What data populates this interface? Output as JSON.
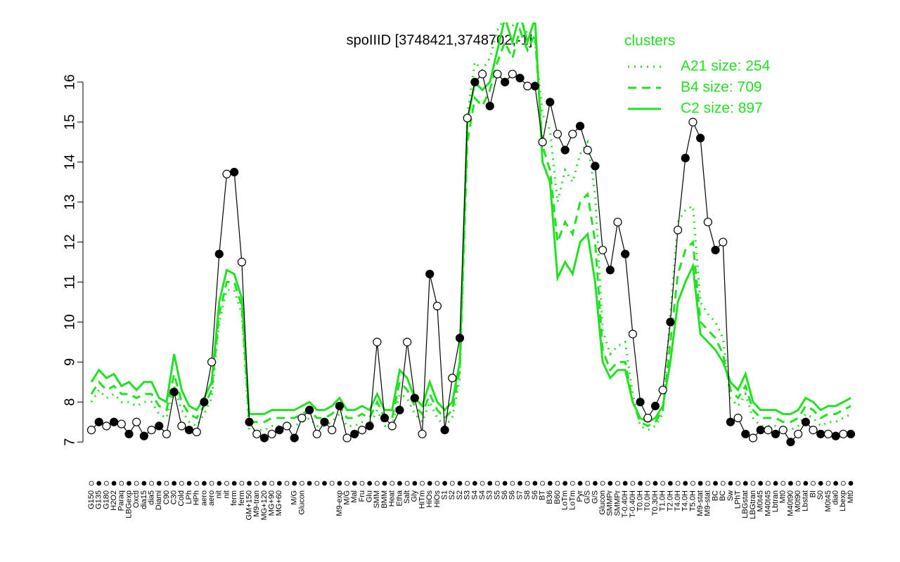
{
  "chart_data": {
    "type": "line",
    "title": "spoIIID [3748421,3748702,-1]",
    "legend_title": "clusters",
    "legend_position": "top-right",
    "categories": [
      "G150",
      "G135",
      "G180",
      "H2O2",
      "Paraq",
      "LBGexp",
      "Oxctl",
      "dia15",
      "dia5",
      "Diami",
      "C90",
      "C30",
      "Cold",
      "LPh",
      "HPh",
      "aero",
      "aero",
      "nit",
      "nit",
      "ferm",
      "ferm",
      "GM+150",
      "M9-tran",
      "MG+120",
      "MG+90",
      "MG+60",
      null,
      "M/G",
      "Glucon",
      null,
      null,
      null,
      null,
      "M9-exp",
      "M/G",
      "Mal",
      "Fru",
      "Glu",
      "SMM",
      "BMM",
      "Heat",
      "Etha",
      "Salt",
      "Gly",
      "HiTm",
      "HiOs",
      "HiOs",
      "S1",
      "S2",
      "S2",
      "S3",
      "S4",
      "S4",
      "S3",
      "S5",
      "S6",
      "S6",
      "S7",
      "S8",
      "S6",
      "BT",
      "B36",
      "B60",
      "LoTm",
      "LoTm",
      "Pyr",
      "G/S",
      "G/S",
      "Glucon",
      "SMMPr",
      "SMMPr",
      "T-0.40H",
      "T-0.40H",
      "T0.0H",
      "T0.0H",
      "T0.30H",
      "T1.0H",
      "T2.0H",
      "T4.0H",
      "T4.0H",
      "T5.0H",
      "M9-stat",
      "M9-stat",
      "BC",
      "BC",
      "Sw",
      "LPhT",
      "LBGstat",
      "LBGtran",
      "M0t45",
      "M40t45",
      "Lbtran",
      "Mt0",
      "M40t90",
      "M0t90",
      "Lbstat",
      "BI",
      "S0",
      "M0t45",
      "dia0",
      "Lbexp",
      "Mt0"
    ],
    "values": [
      7.3,
      7.5,
      7.4,
      7.5,
      7.45,
      7.2,
      7.5,
      7.15,
      7.3,
      7.4,
      7.2,
      8.25,
      7.4,
      7.3,
      7.25,
      8.0,
      9.0,
      11.7,
      13.7,
      13.75,
      11.5,
      7.5,
      7.2,
      7.1,
      7.2,
      7.3,
      7.4,
      7.1,
      7.6,
      7.8,
      7.2,
      7.5,
      7.3,
      7.9,
      7.1,
      7.2,
      7.3,
      7.4,
      9.5,
      7.6,
      7.4,
      7.8,
      9.5,
      8.1,
      7.2,
      11.2,
      10.4,
      7.3,
      8.6,
      9.6,
      15.1,
      16.0,
      16.2,
      15.4,
      16.2,
      16.0,
      16.2,
      16.1,
      15.9,
      15.9,
      14.5,
      15.5,
      14.7,
      14.3,
      14.7,
      14.9,
      14.3,
      13.9,
      11.8,
      11.3,
      12.5,
      11.7,
      9.7,
      8.0,
      7.6,
      7.9,
      8.3,
      10.0,
      12.3,
      14.1,
      15.0,
      14.6,
      12.5,
      11.8,
      12.0,
      7.5,
      7.6,
      7.2,
      7.1,
      7.3,
      7.3,
      7.2,
      7.3,
      7.0,
      7.2,
      7.5,
      7.3,
      7.2,
      7.2,
      7.15,
      7.2,
      7.2
    ],
    "color": "#000000",
    "series": [
      {
        "name": "A21 size: 254",
        "color": "#22e022",
        "style": "dotted",
        "values": [
          8.0,
          8.3,
          8.1,
          8.2,
          8.0,
          8.0,
          7.9,
          8.0,
          8.0,
          7.7,
          7.6,
          8.4,
          7.8,
          7.5,
          7.4,
          7.7,
          8.1,
          10.0,
          10.8,
          10.8,
          10.2,
          7.3,
          7.3,
          7.3,
          7.4,
          7.4,
          7.4,
          7.4,
          7.5,
          7.6,
          7.4,
          7.4,
          7.5,
          7.7,
          7.4,
          7.4,
          7.5,
          7.4,
          7.8,
          7.4,
          7.4,
          8.2,
          8.1,
          7.7,
          7.5,
          8.0,
          7.6,
          7.4,
          7.6,
          8.6,
          15.2,
          16.5,
          16.3,
          16.6,
          17.3,
          17.6,
          17.4,
          17.6,
          17.2,
          17.0,
          15.2,
          14.8,
          13.0,
          13.8,
          13.5,
          14.2,
          14.5,
          13.2,
          9.8,
          9.2,
          9.4,
          9.5,
          8.2,
          7.4,
          7.3,
          7.4,
          7.7,
          10.2,
          12.5,
          12.8,
          12.9,
          10.5,
          10.2,
          10.0,
          9.6,
          8.1,
          7.9,
          8.2,
          7.6,
          7.4,
          7.4,
          7.4,
          7.3,
          7.3,
          7.4,
          7.7,
          7.6,
          7.4,
          7.5,
          7.5,
          7.6,
          7.7
        ]
      },
      {
        "name": "B4 size: 709",
        "color": "#22e022",
        "style": "dashed",
        "values": [
          8.2,
          8.5,
          8.3,
          8.4,
          8.2,
          8.2,
          8.1,
          8.2,
          8.2,
          7.9,
          7.8,
          8.7,
          8.0,
          7.7,
          7.6,
          7.9,
          8.3,
          10.2,
          11.0,
          11.0,
          10.4,
          7.5,
          7.5,
          7.5,
          7.6,
          7.6,
          7.6,
          7.6,
          7.7,
          7.8,
          7.6,
          7.6,
          7.7,
          7.9,
          7.6,
          7.6,
          7.7,
          7.6,
          8.0,
          7.6,
          7.6,
          8.5,
          8.3,
          7.9,
          7.7,
          8.2,
          7.8,
          7.6,
          7.8,
          8.8,
          14.5,
          15.6,
          15.4,
          15.8,
          16.5,
          17.0,
          16.6,
          17.3,
          16.8,
          17.2,
          14.4,
          13.8,
          12.0,
          12.5,
          12.2,
          13.0,
          13.2,
          12.0,
          9.3,
          8.8,
          9.0,
          9.0,
          8.0,
          7.5,
          7.4,
          7.5,
          7.8,
          9.5,
          11.2,
          11.8,
          12.0,
          10.0,
          9.8,
          9.6,
          9.2,
          8.3,
          8.1,
          8.4,
          7.8,
          7.6,
          7.6,
          7.6,
          7.5,
          7.5,
          7.6,
          7.9,
          7.8,
          7.6,
          7.7,
          7.7,
          7.8,
          7.9
        ]
      },
      {
        "name": "C2 size: 897",
        "color": "#22e022",
        "style": "solid",
        "values": [
          8.5,
          8.8,
          8.6,
          8.7,
          8.4,
          8.5,
          8.3,
          8.5,
          8.5,
          8.1,
          8.0,
          9.2,
          8.3,
          7.9,
          7.8,
          8.1,
          8.5,
          10.5,
          11.3,
          11.2,
          10.6,
          7.7,
          7.7,
          7.7,
          7.8,
          7.8,
          7.8,
          7.8,
          7.9,
          8.0,
          7.8,
          7.8,
          7.9,
          8.1,
          7.8,
          7.8,
          7.9,
          7.8,
          8.2,
          7.8,
          7.8,
          8.8,
          8.6,
          8.1,
          7.9,
          8.5,
          8.0,
          7.8,
          8.0,
          9.0,
          15.0,
          16.0,
          15.8,
          16.0,
          16.8,
          17.6,
          17.0,
          17.7,
          17.0,
          17.6,
          14.0,
          13.5,
          11.1,
          11.5,
          11.2,
          12.0,
          12.2,
          11.0,
          9.0,
          8.6,
          8.8,
          8.8,
          8.0,
          7.6,
          7.5,
          7.6,
          7.9,
          9.0,
          10.5,
          11.0,
          11.4,
          9.7,
          9.5,
          9.3,
          9.0,
          8.5,
          8.3,
          8.7,
          8.0,
          7.8,
          7.8,
          7.8,
          7.7,
          7.7,
          7.8,
          8.1,
          8.0,
          7.8,
          7.9,
          7.9,
          8.0,
          8.1
        ]
      }
    ],
    "ylim": [
      6.81,
      17.49
    ],
    "yticks": [
      7,
      8,
      9,
      10,
      11,
      12,
      13,
      14,
      15,
      16
    ],
    "grid": false
  }
}
